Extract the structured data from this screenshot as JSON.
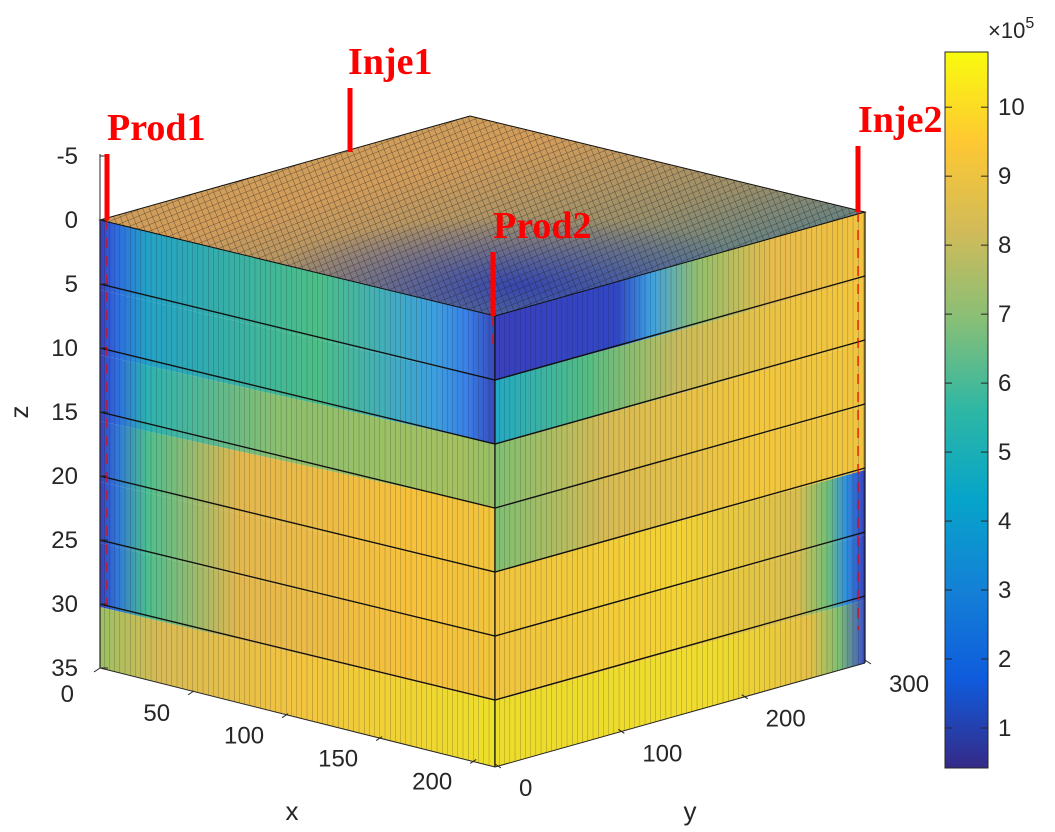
{
  "chart_data": {
    "type": "heatmap",
    "subtype": "3d-block-surface",
    "title": "",
    "xlabel": "x",
    "ylabel": "y",
    "zlabel": "z",
    "x_ticks": [
      "0",
      "50",
      "100",
      "150",
      "200"
    ],
    "y_ticks": [
      "0",
      "100",
      "200",
      "300"
    ],
    "z_ticks": [
      "-5",
      "0",
      "5",
      "10",
      "15",
      "20",
      "25",
      "30",
      "35"
    ],
    "xlim": [
      0,
      220
    ],
    "ylim": [
      0,
      330
    ],
    "zlim": [
      -5,
      35
    ],
    "z_reversed": true,
    "layer_boundaries_z": [
      0,
      5,
      10,
      15,
      20,
      25,
      30,
      35
    ],
    "colormap": "parula",
    "colorbar": {
      "ticks": [
        "1",
        "2",
        "3",
        "4",
        "5",
        "6",
        "7",
        "8",
        "9",
        "10"
      ],
      "tick_values": [
        1,
        2,
        3,
        4,
        5,
        6,
        7,
        8,
        9,
        10
      ],
      "exponent_label": "×10",
      "exponent": "5",
      "range": [
        0.42,
        10.8
      ],
      "colors": [
        "#352a87",
        "#0f5cdd",
        "#1481d6",
        "#06a4ca",
        "#2eb7a4",
        "#87bf77",
        "#d1bb59",
        "#fec832",
        "#f9fb0e"
      ]
    },
    "wells": [
      {
        "name": "Prod1",
        "x": 0,
        "y": 0,
        "z_top": -5,
        "z_bottom": 30
      },
      {
        "name": "Inje1",
        "x": 0,
        "y": 300,
        "z_top": -10,
        "z_bottom": 0
      },
      {
        "name": "Inje2",
        "x": 210,
        "y": 300,
        "z_top": -5,
        "z_bottom": 30
      },
      {
        "name": "Prod2",
        "x": 210,
        "y": 0,
        "z_top": -5,
        "z_bottom": 10
      }
    ]
  }
}
